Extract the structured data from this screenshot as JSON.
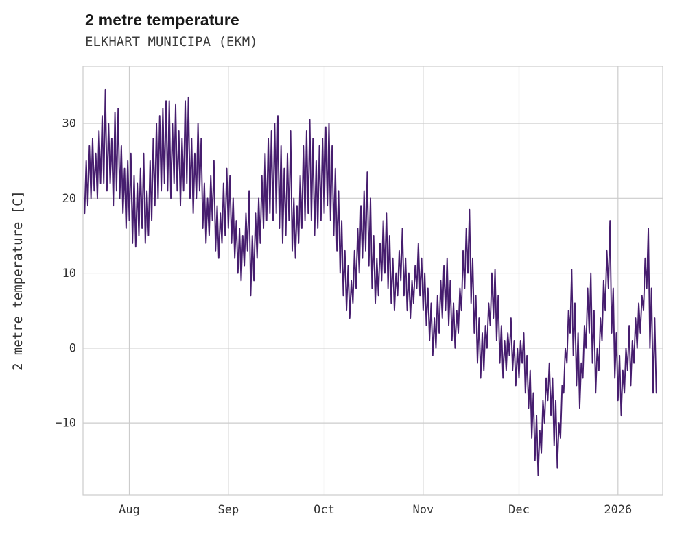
{
  "header": {
    "title": "2 metre temperature",
    "subtitle": "ELKHART MUNICIPA (EKM)"
  },
  "chart_data": {
    "type": "line",
    "title": "2 metre temperature",
    "subtitle": "ELKHART MUNICIPA (EKM)",
    "xlabel": "",
    "ylabel": "2 metre temperature [C]",
    "unit": "C",
    "line_color": "#461d6e",
    "grid_color": "#cccccc",
    "background": "#ffffff",
    "legend": "none",
    "grid": "on",
    "y_ticks": [
      {
        "value": 30,
        "label": "30"
      },
      {
        "value": 20,
        "label": "20"
      },
      {
        "value": 10,
        "label": "10"
      },
      {
        "value": 0,
        "label": "0"
      },
      {
        "value": -10,
        "label": "−10"
      }
    ],
    "x_ticks": [
      {
        "day": 14,
        "label": "Aug"
      },
      {
        "day": 45,
        "label": "Sep"
      },
      {
        "day": 75,
        "label": "Oct"
      },
      {
        "day": 106,
        "label": "Nov"
      },
      {
        "day": 136,
        "label": "Dec"
      },
      {
        "day": 167,
        "label": "2026"
      }
    ],
    "x_start": "Jul 18",
    "x_domain_days": [
      -0.5,
      181
    ],
    "y_domain": [
      -19.6,
      37.6
    ],
    "samples_per_day": 2,
    "samples": [
      18,
      25,
      19,
      27,
      20,
      28,
      21,
      26,
      20,
      29,
      22,
      31,
      22,
      34.5,
      21,
      30,
      22,
      28,
      19,
      31.5,
      21,
      32,
      20,
      27,
      18,
      24,
      16,
      25,
      17,
      26,
      14,
      23,
      13.5,
      22,
      15,
      24,
      16,
      26,
      14,
      21,
      15,
      25,
      17,
      28,
      19,
      30,
      20,
      31,
      21,
      32,
      22,
      33,
      21,
      33,
      20,
      30,
      22,
      32.5,
      21,
      29,
      19,
      28,
      21,
      33,
      22,
      33.5,
      20,
      28,
      18,
      26,
      20,
      30,
      21,
      28,
      16,
      22,
      14,
      20,
      15,
      23,
      17,
      25,
      13,
      19,
      12,
      18,
      14,
      22,
      15,
      24,
      16,
      23,
      14,
      20,
      12,
      17,
      10,
      16,
      9,
      15,
      11,
      18,
      13,
      21,
      7,
      15,
      9,
      18,
      12,
      20,
      14,
      23,
      16,
      26,
      17,
      28,
      18,
      29,
      17,
      30,
      18,
      31,
      16,
      27,
      14,
      24,
      15,
      26,
      17,
      29,
      13,
      20,
      12,
      19,
      14,
      23,
      16,
      27,
      17,
      29,
      18,
      30.5,
      17,
      28,
      15,
      25,
      16,
      27,
      17,
      28,
      18,
      29.5,
      19,
      30,
      17,
      27,
      15,
      24,
      13,
      21,
      10,
      17,
      7,
      13,
      5,
      11,
      4,
      9,
      6,
      13,
      8,
      16,
      10,
      19,
      12,
      21,
      13,
      23.5,
      11,
      20,
      8,
      15,
      6,
      12,
      7,
      14,
      9,
      17,
      10,
      18,
      8,
      15,
      6,
      12,
      5,
      10,
      7,
      13,
      9,
      16,
      7,
      12,
      5,
      10,
      4,
      9,
      6,
      11,
      8,
      14,
      7,
      12,
      5,
      10,
      3,
      8,
      1,
      6,
      -1,
      4,
      0,
      7,
      2,
      9,
      4,
      11,
      5,
      12,
      3,
      9,
      1,
      6,
      0,
      5,
      2,
      8,
      5,
      13,
      8,
      16,
      10,
      18.5,
      6,
      12,
      2,
      7,
      -2,
      4,
      -4,
      2,
      -3,
      3,
      0,
      6,
      3,
      10,
      4,
      10.5,
      1,
      7,
      -2,
      3,
      -4,
      1,
      -3,
      2,
      -1,
      4,
      -3,
      1,
      -5,
      0,
      -4,
      1,
      -2,
      2,
      -6,
      -1,
      -8,
      -3,
      -12,
      -6,
      -15,
      -9,
      -17,
      -11,
      -14,
      -7,
      -10,
      -4,
      -7,
      -2,
      -9,
      -4,
      -13,
      -7,
      -16,
      -10,
      -12,
      -5,
      -6,
      0,
      -2,
      5,
      2,
      10.5,
      -1,
      6,
      -5,
      2,
      -8,
      -2,
      -4,
      3,
      0,
      8,
      2,
      10,
      -2,
      5,
      -6,
      0,
      -3,
      4,
      1,
      9,
      5,
      13,
      8,
      17,
      2,
      8,
      -4,
      2,
      -7,
      -1,
      -9,
      -3,
      -6,
      0,
      -3,
      3,
      -5,
      1,
      -2,
      4,
      0,
      6,
      2,
      7,
      5,
      12,
      8,
      16,
      0,
      8,
      -6,
      4,
      -6
    ]
  }
}
